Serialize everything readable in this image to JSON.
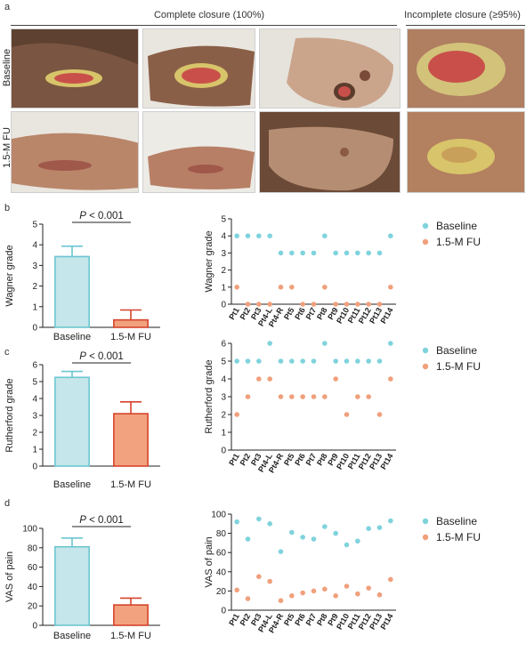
{
  "panel_a": {
    "letter": "a",
    "complete_header": "Complete closure (100%)",
    "incomplete_header": "Incomplete closure (≥95%)",
    "row_labels": [
      "Baseline",
      "1.5-M FU"
    ],
    "photo_colors": {
      "skin": "#b9866a",
      "dark_skin": "#6b4a37",
      "wound": "#c9504a",
      "slough": "#d8c46a",
      "background": "#e9e6df"
    }
  },
  "panel_letters": [
    "b",
    "c",
    "d"
  ],
  "chart_data": [
    {
      "type": "bar",
      "panel": "b",
      "categories": [
        "Baseline",
        "1.5-M FU"
      ],
      "values": [
        3.43,
        0.36
      ],
      "error": [
        0.5,
        0.48
      ],
      "ylabel": "Wagner grade",
      "ylim": [
        0,
        5
      ],
      "yticks": [
        0,
        1,
        2,
        3,
        4,
        5
      ],
      "p_label": "P",
      "p_text": " < 0.001",
      "colors": {
        "fill": [
          "#c5e6ea",
          "#f2a27e"
        ],
        "stroke": [
          "#6cc6d1",
          "#d5442c"
        ]
      }
    },
    {
      "type": "scatter",
      "panel": "b",
      "categories": [
        "Pt1",
        "Pt2",
        "Pt3",
        "Pt4-L",
        "Pt4-R",
        "Pt5",
        "Pt6",
        "Pt7",
        "Pt8",
        "Pt9",
        "Pt10",
        "Pt11",
        "Pt12",
        "Pt13",
        "Pt14"
      ],
      "series": [
        {
          "name": "Baseline",
          "color": "#7fd3dd",
          "values": [
            4,
            4,
            4,
            4,
            3,
            3,
            3,
            3,
            4,
            3,
            3,
            3,
            3,
            3,
            4
          ]
        },
        {
          "name": "1.5-M FU",
          "color": "#f0a07c",
          "values": [
            1,
            0,
            0,
            0,
            1,
            1,
            0,
            0,
            1,
            0,
            0,
            0,
            0,
            0,
            1
          ]
        }
      ],
      "ylabel": "Wagner grade",
      "ylim": [
        0,
        5
      ],
      "yticks": [
        0,
        1,
        2,
        3,
        4,
        5
      ],
      "legend": "top-right"
    },
    {
      "type": "bar",
      "panel": "c",
      "categories": [
        "Baseline",
        "1.5-M FU"
      ],
      "values": [
        5.25,
        3.1
      ],
      "error": [
        0.35,
        0.7
      ],
      "ylabel": "Rutherford grade",
      "ylim": [
        0,
        6
      ],
      "yticks": [
        0,
        1,
        2,
        3,
        4,
        5,
        6
      ],
      "p_label": "P",
      "p_text": " < 0.001",
      "colors": {
        "fill": [
          "#c5e6ea",
          "#f2a27e"
        ],
        "stroke": [
          "#6cc6d1",
          "#d5442c"
        ]
      }
    },
    {
      "type": "scatter",
      "panel": "c",
      "categories": [
        "Pt1",
        "Pt2",
        "Pt3",
        "Pt4-L",
        "Pt4-R",
        "Pt5",
        "Pt6",
        "Pt7",
        "Pt8",
        "Pt9",
        "Pt10",
        "Pt11",
        "Pt12",
        "Pt13",
        "Pt14"
      ],
      "series": [
        {
          "name": "Baseline",
          "color": "#7fd3dd",
          "values": [
            5,
            5,
            5,
            6,
            5,
            5,
            5,
            5,
            6,
            5,
            5,
            5,
            5,
            5,
            6
          ]
        },
        {
          "name": "1.5-M FU",
          "color": "#f0a07c",
          "values": [
            2,
            3,
            4,
            4,
            3,
            3,
            3,
            3,
            3,
            4,
            2,
            3,
            3,
            2,
            4
          ]
        }
      ],
      "ylabel": "Rutherford grade",
      "ylim": [
        0,
        6
      ],
      "yticks": [
        0,
        1,
        2,
        3,
        4,
        5,
        6
      ],
      "legend": "top-right"
    },
    {
      "type": "bar",
      "panel": "d",
      "categories": [
        "Baseline",
        "1.5-M FU"
      ],
      "values": [
        81,
        21
      ],
      "error": [
        9,
        7
      ],
      "ylabel": "VAS of pain",
      "ylim": [
        0,
        100
      ],
      "yticks": [
        0,
        20,
        40,
        60,
        80,
        100
      ],
      "p_label": "P",
      "p_text": " < 0.001",
      "colors": {
        "fill": [
          "#c5e6ea",
          "#f2a27e"
        ],
        "stroke": [
          "#6cc6d1",
          "#d5442c"
        ]
      }
    },
    {
      "type": "scatter",
      "panel": "d",
      "categories": [
        "Pt1",
        "Pt2",
        "Pt3",
        "Pt4-L",
        "Pt4-R",
        "Pt5",
        "Pt6",
        "Pt7",
        "Pt8",
        "Pt9",
        "Pt10",
        "Pt11",
        "Pt12",
        "Pt13",
        "Pt14"
      ],
      "series": [
        {
          "name": "Baseline",
          "color": "#7fd3dd",
          "values": [
            92,
            74,
            95,
            90,
            61,
            81,
            76,
            74,
            87,
            80,
            68,
            72,
            85,
            86,
            93
          ]
        },
        {
          "name": "1.5-M FU",
          "color": "#f0a07c",
          "values": [
            21,
            12,
            35,
            30,
            10,
            15,
            18,
            20,
            22,
            15,
            25,
            17,
            23,
            16,
            32
          ]
        }
      ],
      "ylabel": "VAS of pain",
      "ylim": [
        0,
        100
      ],
      "yticks": [
        0,
        20,
        40,
        60,
        80,
        100
      ],
      "legend": "top-right"
    }
  ]
}
